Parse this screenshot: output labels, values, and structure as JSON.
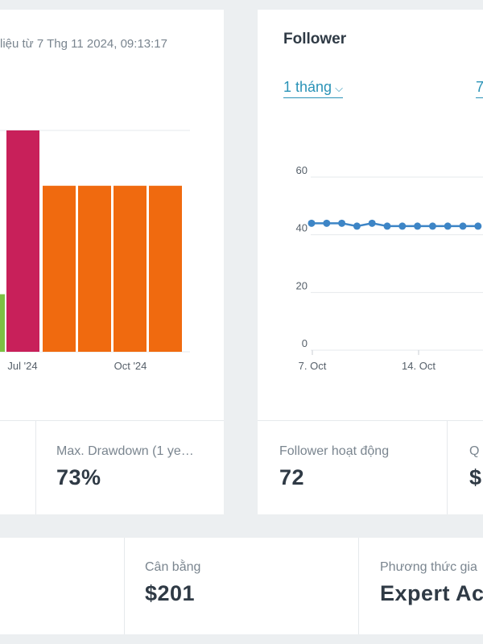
{
  "left_panel": {
    "data_since": "liệu từ 7 Thg 11 2024, 09:13:17",
    "chart_data": {
      "type": "bar",
      "x_tick_labels": [
        "Jul '24",
        "Oct '24"
      ],
      "bars": [
        {
          "value": 26,
          "color": "#7cc043"
        },
        {
          "value": 100,
          "color": "#c8205a"
        },
        {
          "value": 75,
          "color": "#f06a0f"
        },
        {
          "value": 75,
          "color": "#f06a0f"
        },
        {
          "value": 75,
          "color": "#f06a0f"
        },
        {
          "value": 75,
          "color": "#f06a0f"
        }
      ]
    },
    "stats": [
      {
        "label": "Max. Drawdown (1 ye…",
        "value": "73%"
      }
    ]
  },
  "right_panel": {
    "title": "Follower",
    "period_select": "1 tháng",
    "period_select_2": "7",
    "chart_data": {
      "type": "line",
      "y_tick_labels": [
        "0",
        "20",
        "40",
        "60"
      ],
      "ylim": [
        0,
        60
      ],
      "x_tick_labels": [
        "7. Oct",
        "14. Oct"
      ],
      "series": [
        {
          "color": "#3d85c6",
          "values": [
            44,
            44,
            44,
            43,
            44,
            43,
            43,
            43,
            43,
            43,
            43,
            43
          ]
        }
      ]
    },
    "stats": [
      {
        "label": "Follower hoạt động",
        "value": "72"
      },
      {
        "label": "Q",
        "value": "$"
      }
    ]
  },
  "bottom_panel": {
    "stats": [
      {
        "label": "Cân bằng",
        "value": "$201"
      },
      {
        "label": "Phương thức gia",
        "value": "Expert Ac"
      }
    ]
  }
}
